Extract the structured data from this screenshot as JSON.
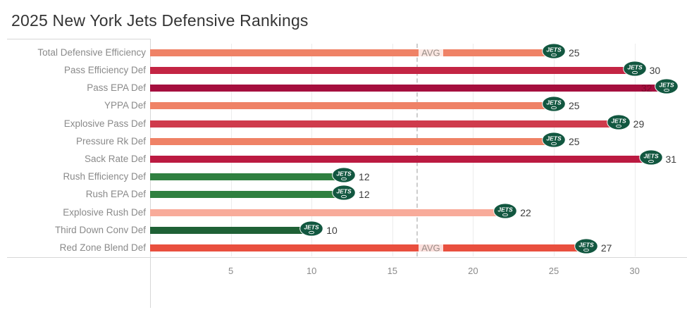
{
  "title": "2025 New York Jets Defensive Rankings",
  "chart_data": {
    "type": "bar",
    "orientation": "horizontal",
    "title": "2025 New York Jets Defensive Rankings",
    "categories": [
      "Total Defensive Efficiency",
      "Pass Efficiency Def",
      "Pass EPA Def",
      "YPPA Def",
      "Explosive Pass Def",
      "Pressure Rk Def",
      "Sack Rate Def",
      "Rush Efficiency Def",
      "Rush EPA Def",
      "Explosive Rush Def",
      "Third Down Conv Def",
      "Red Zone Blend Def"
    ],
    "values": [
      25,
      30,
      32,
      25,
      29,
      25,
      31,
      12,
      12,
      22,
      10,
      27
    ],
    "rows": [
      {
        "label": "Total Defensive Efficiency",
        "value": 25,
        "color": "#ef8266",
        "show_avg_label": true
      },
      {
        "label": "Pass Efficiency Def",
        "value": 30,
        "color": "#c32544"
      },
      {
        "label": "Pass EPA Def",
        "value": 32,
        "color": "#a50f3e",
        "value_label_inside": true,
        "value_label_color": "#7e0a2e"
      },
      {
        "label": "YPPA Def",
        "value": 25,
        "color": "#ef8266"
      },
      {
        "label": "Explosive Pass Def",
        "value": 29,
        "color": "#cf3b4c"
      },
      {
        "label": "Pressure Rk Def",
        "value": 25,
        "color": "#ef8266"
      },
      {
        "label": "Sack Rate Def",
        "value": 31,
        "color": "#bb1a41"
      },
      {
        "label": "Rush Efficiency Def",
        "value": 12,
        "color": "#2f8040"
      },
      {
        "label": "Rush EPA Def",
        "value": 12,
        "color": "#2f8040"
      },
      {
        "label": "Explosive Rush Def",
        "value": 22,
        "color": "#f8ab9a"
      },
      {
        "label": "Third Down Conv Def",
        "value": 10,
        "color": "#1f6136"
      },
      {
        "label": "Red Zone Blend Def",
        "value": 27,
        "color": "#e94f3e",
        "show_avg_label": true
      }
    ],
    "x_ticks": [
      5,
      10,
      15,
      20,
      25,
      30
    ],
    "xlim": [
      0,
      33.2
    ],
    "grid": true,
    "legend": "none",
    "reference_line": {
      "value": 16.5,
      "label": "AVG",
      "style": "dashed"
    },
    "marker": {
      "name": "jets-logo",
      "text": "JETS"
    }
  },
  "colors": {
    "title": "#343434",
    "row_label": "#8a8a8a",
    "tick_label": "#8a8a8a",
    "value_label": "#3d3d3d",
    "gridline": "#ececec",
    "axis_line": "#d7d7d7",
    "reference_line": "#cdcdcd",
    "avg_label": "#9a8f89",
    "logo_green": "#125740",
    "logo_text": "#ffffff"
  }
}
